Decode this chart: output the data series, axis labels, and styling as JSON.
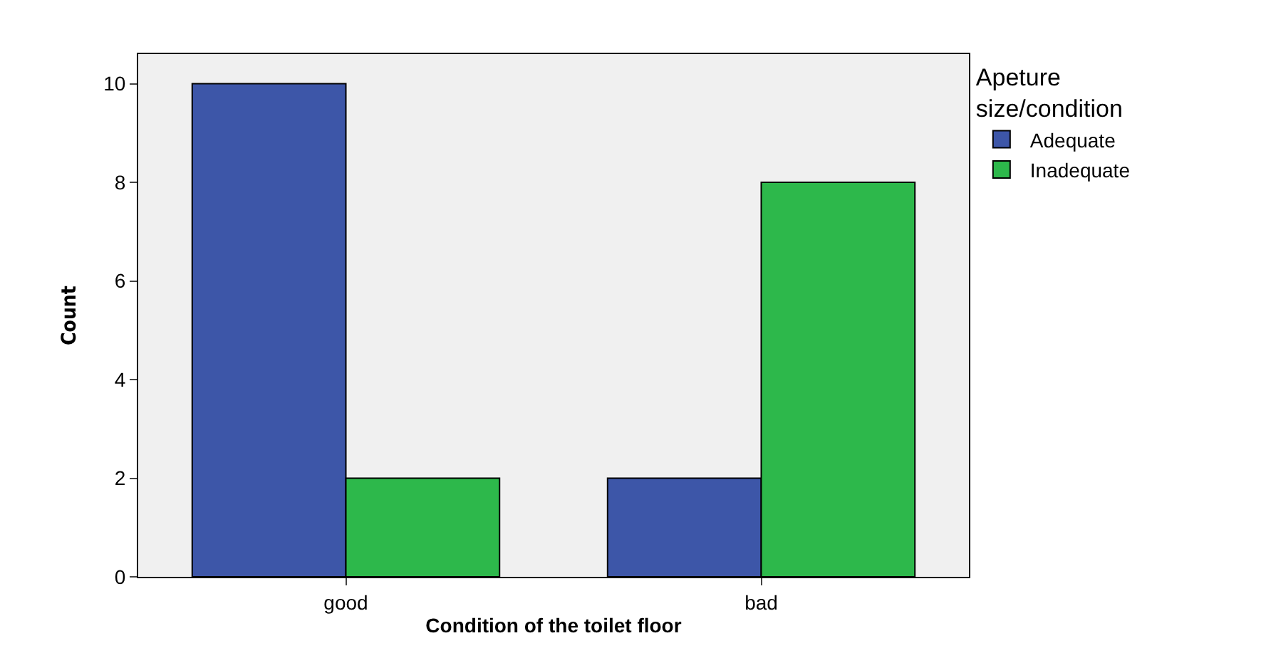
{
  "chart_data": {
    "type": "bar",
    "xlabel": "Condition of the toilet floor",
    "ylabel": "Count",
    "legend_title": "Apeture\nsize/condition",
    "categories": [
      "good",
      "bad"
    ],
    "series": [
      {
        "name": "Adequate",
        "color": "#3d56a8",
        "values": [
          10,
          2
        ]
      },
      {
        "name": "Inadequate",
        "color": "#2db84b",
        "values": [
          2,
          8
        ]
      }
    ],
    "ylim": [
      0,
      10.6
    ],
    "yticks": [
      0,
      2,
      4,
      6,
      8,
      10
    ],
    "grid": false,
    "legend": "top right"
  }
}
